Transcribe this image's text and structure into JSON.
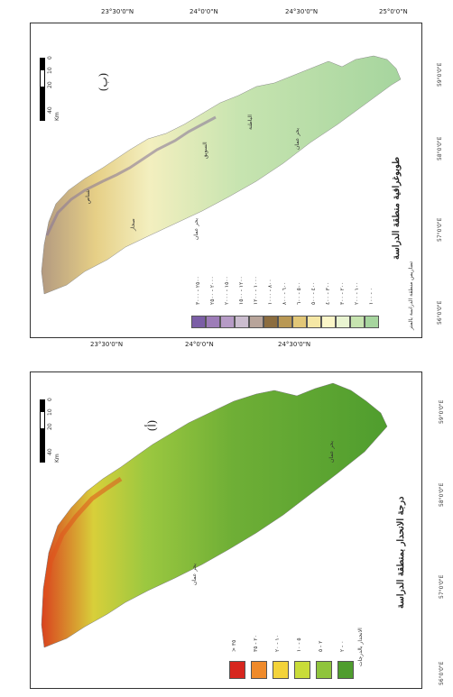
{
  "top_panel": {
    "label": "(ب)",
    "title": "طوبوغرافية منطقة الدراسة",
    "legend_title": "تضاريس منطقة الدراسة بالمتر",
    "top_coords": [
      "23°30'0\"N",
      "24°0'0\"N",
      "24°30'0\"N",
      "25°0'0\"N"
    ],
    "bottom_coords": [
      "23°30'0\"N",
      "24°0'0\"N",
      "24°30'0\"N"
    ],
    "right_coords": [
      "56°0'0\"E",
      "57°0'0\"E",
      "58°0'0\"E",
      "59°0'0\"E"
    ],
    "scale": {
      "ticks": [
        "0",
        "10",
        "20",
        "40"
      ],
      "unit": "Km"
    },
    "sea_labels": [
      "بحر عمان",
      "بحر عمان"
    ],
    "place_labels": [
      "الباطنة",
      "السويق",
      "صحار",
      "شناص"
    ],
    "legend_colors": [
      "#a6d59e",
      "#c7e4b0",
      "#e9f4d1",
      "#fbf6c8",
      "#f5e7a5",
      "#e2c777",
      "#b99854",
      "#8c6d3f",
      "#b8a49a",
      "#cbbdcf",
      "#b69bc6",
      "#9d7cb8",
      "#7b5ea6"
    ],
    "legend_items": [
      "٠ - ١٠٠",
      "١٠٠ - ٢٠٠",
      "٢٠٠ - ٣٠٠",
      "٣٠٠ - ٤٠٠",
      "٤٠٠ - ٥٠٠",
      "٥٠٠ - ٦٠٠",
      "٦٠٠ - ٨٠٠",
      "٨٠٠ - ١٠٠٠",
      "١٠٠٠ - ١٢٠٠",
      "١٢٠٠ - ١٥٠٠",
      "١٥٠٠ - ٢٠٠٠",
      "٢٠٠٠ - ٢٥٠٠",
      "٢٥٠٠ - ٣٠٠٠"
    ]
  },
  "bottom_panel": {
    "label": "(أ)",
    "title": "درجة الانحدار بمنطقة الدراسة",
    "legend_title": "الانحدار بالدرجات",
    "right_coords": [
      "56°0'0\"E",
      "57°0'0\"E",
      "58°0'0\"E",
      "59°0'0\"E"
    ],
    "scale": {
      "ticks": [
        "0",
        "10",
        "20",
        "40"
      ],
      "unit": "Km"
    },
    "sea_labels": [
      "بحر عمان",
      "بحر عمان"
    ],
    "legend_colors": [
      "#4f9d2e",
      "#8fc43c",
      "#c9dc39",
      "#f3d33a",
      "#ef8a2a",
      "#d7261e"
    ],
    "legend_items": [
      "٠ - ٢",
      "٢ - ٥",
      "٥ - ١٠",
      "١٠ - ٢٠",
      "٢٠ - ٣٥",
      "> ٣٥"
    ]
  }
}
